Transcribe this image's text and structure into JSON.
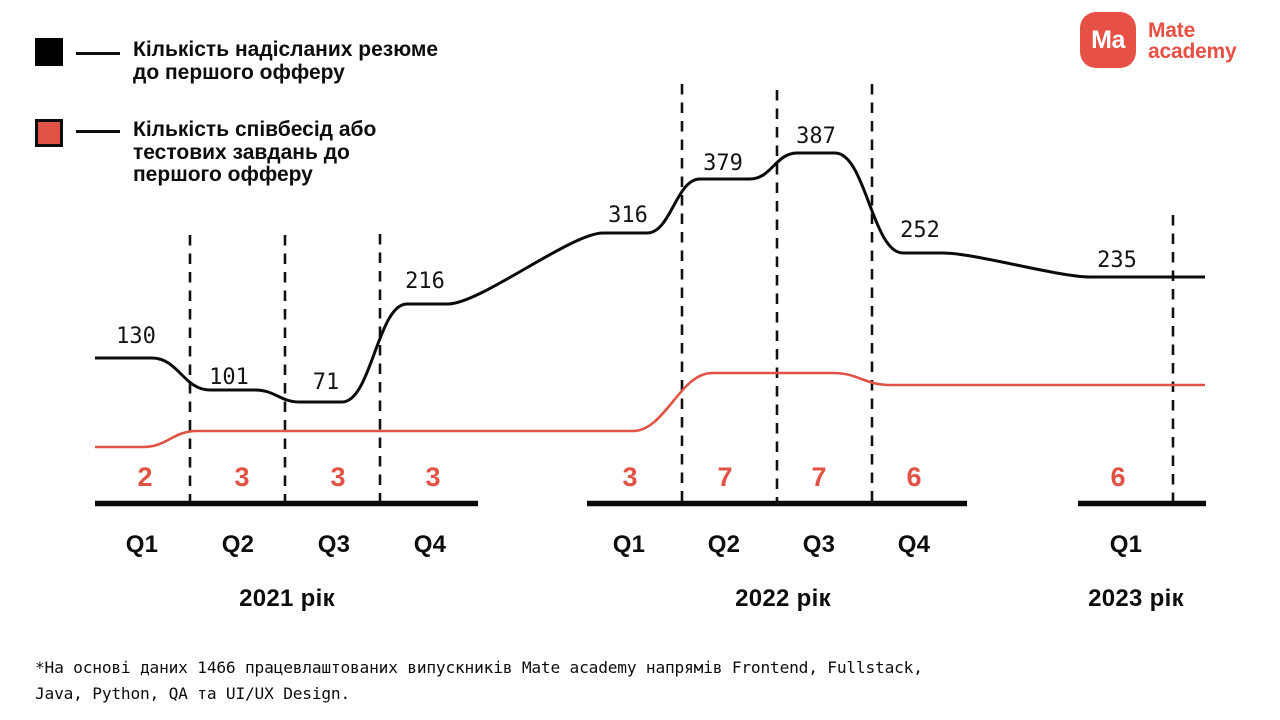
{
  "logo": {
    "badge_text": "Ma",
    "name_lines": [
      "Mate",
      "academy"
    ],
    "color": "#e65045"
  },
  "legend": {
    "items": [
      {
        "swatch_color": "#000000",
        "lines": [
          "Кількість надісланих резюме",
          "до першого офферу"
        ]
      },
      {
        "swatch_color": "#e05243",
        "lines": [
          "Кількість співбесід або",
          "тестових завдань до",
          "першого офферу"
        ]
      }
    ]
  },
  "chart_data": {
    "type": "line",
    "categories": [
      "Q1 2021",
      "Q2 2021",
      "Q3 2021",
      "Q4 2021",
      "Q1 2022",
      "Q2 2022",
      "Q3 2022",
      "Q4 2022",
      "Q1 2023"
    ],
    "series": [
      {
        "name": "Кількість надісланих резюме до першого офферу",
        "color": "#0b0b0b",
        "values": [
          130,
          101,
          71,
          216,
          316,
          379,
          387,
          252,
          235
        ]
      },
      {
        "name": "Кількість співбесід або тестових завдань до першого офферу",
        "color": "#e05243",
        "values": [
          2,
          3,
          3,
          3,
          3,
          7,
          7,
          6,
          6
        ]
      }
    ],
    "x_groups": [
      {
        "label": "2021 рік",
        "quarters": [
          "Q1",
          "Q2",
          "Q3",
          "Q4"
        ]
      },
      {
        "label": "2022 рік",
        "quarters": [
          "Q1",
          "Q2",
          "Q3",
          "Q4"
        ]
      },
      {
        "label": "2023 рік",
        "quarters": [
          "Q1"
        ]
      }
    ],
    "legend_position": "top-left",
    "grid": "vertical-dashed-quarter-separators",
    "axis": "x-only-no-y-scale"
  },
  "footnote": {
    "lines": [
      "*На основі даних 1466 працевлаштованих випускників Mate academy напрямів Frontend, Fullstack,",
      "Java, Python, QA та UI/UX Design."
    ]
  }
}
